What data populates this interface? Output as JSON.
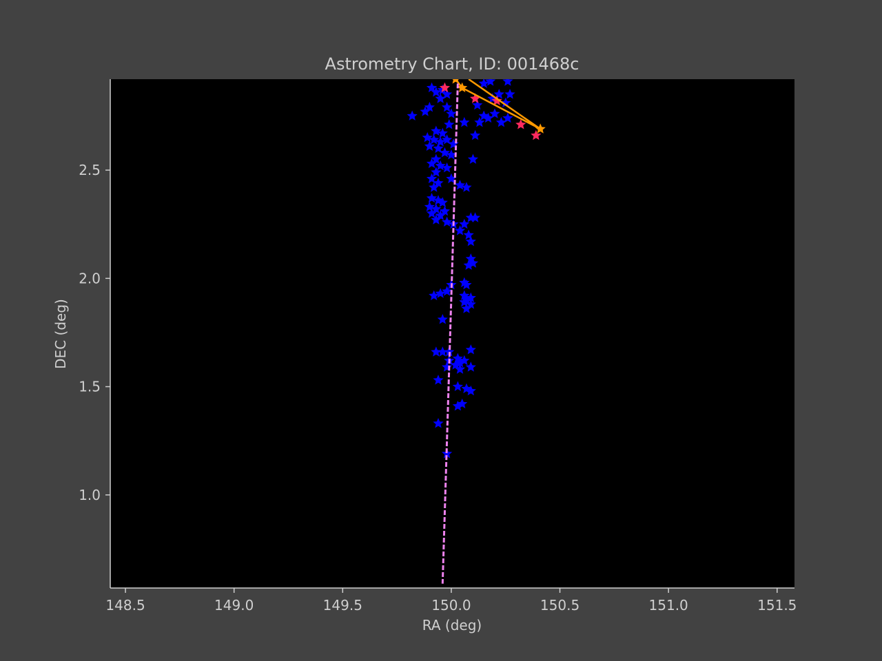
{
  "chart_data": {
    "type": "scatter",
    "title": "Astrometry Chart, ID: 001468c",
    "xlabel": "RA (deg)",
    "ylabel": "DEC (deg)",
    "xlim": [
      148.43,
      151.58
    ],
    "ylim": [
      0.57,
      2.92
    ],
    "x_ticks": [
      148.5,
      149.0,
      149.5,
      150.0,
      150.5,
      151.0,
      151.5
    ],
    "x_tick_labels": [
      "148.5",
      "149.0",
      "149.5",
      "150.0",
      "150.5",
      "151.0",
      "151.5"
    ],
    "y_ticks": [
      1.0,
      1.5,
      2.0,
      2.5
    ],
    "y_tick_labels": [
      "1.0",
      "1.5",
      "2.0",
      "2.5"
    ],
    "grid": false,
    "plot_background": "#000000",
    "figure_background": "#424242",
    "series": [
      {
        "marker": "star",
        "color": "#0000ff",
        "points": [
          [
            149.91,
            2.88
          ],
          [
            149.93,
            2.86
          ],
          [
            149.96,
            2.87
          ],
          [
            149.98,
            2.85
          ],
          [
            149.95,
            2.83
          ],
          [
            149.98,
            2.79
          ],
          [
            149.9,
            2.79
          ],
          [
            149.88,
            2.77
          ],
          [
            149.82,
            2.75
          ],
          [
            150.0,
            2.76
          ],
          [
            149.99,
            2.71
          ],
          [
            150.06,
            2.72
          ],
          [
            149.93,
            2.68
          ],
          [
            149.96,
            2.67
          ],
          [
            149.89,
            2.65
          ],
          [
            149.92,
            2.64
          ],
          [
            149.95,
            2.63
          ],
          [
            149.98,
            2.64
          ],
          [
            150.01,
            2.62
          ],
          [
            149.9,
            2.61
          ],
          [
            149.94,
            2.6
          ],
          [
            149.97,
            2.58
          ],
          [
            150.0,
            2.57
          ],
          [
            149.93,
            2.55
          ],
          [
            150.1,
            2.55
          ],
          [
            149.91,
            2.53
          ],
          [
            149.95,
            2.52
          ],
          [
            149.98,
            2.51
          ],
          [
            149.93,
            2.49
          ],
          [
            150.0,
            2.46
          ],
          [
            149.91,
            2.46
          ],
          [
            149.94,
            2.44
          ],
          [
            149.92,
            2.42
          ],
          [
            150.07,
            2.42
          ],
          [
            150.04,
            2.43
          ],
          [
            149.91,
            2.37
          ],
          [
            149.94,
            2.36
          ],
          [
            149.96,
            2.35
          ],
          [
            149.9,
            2.33
          ],
          [
            149.93,
            2.32
          ],
          [
            149.97,
            2.31
          ],
          [
            149.91,
            2.3
          ],
          [
            149.95,
            2.29
          ],
          [
            149.93,
            2.27
          ],
          [
            149.98,
            2.26
          ],
          [
            150.01,
            2.25
          ],
          [
            150.06,
            2.25
          ],
          [
            150.09,
            2.28
          ],
          [
            150.11,
            2.28
          ],
          [
            150.04,
            2.22
          ],
          [
            150.08,
            2.2
          ],
          [
            150.09,
            2.17
          ],
          [
            150.09,
            2.09
          ],
          [
            150.1,
            2.07
          ],
          [
            150.08,
            2.06
          ],
          [
            150.06,
            1.98
          ],
          [
            150.07,
            1.97
          ],
          [
            150.0,
            1.97
          ],
          [
            149.98,
            1.94
          ],
          [
            149.95,
            1.93
          ],
          [
            149.92,
            1.92
          ],
          [
            150.06,
            1.92
          ],
          [
            150.09,
            1.91
          ],
          [
            150.07,
            1.9
          ],
          [
            150.06,
            1.89
          ],
          [
            150.09,
            1.88
          ],
          [
            150.07,
            1.86
          ],
          [
            149.96,
            1.81
          ],
          [
            150.09,
            1.67
          ],
          [
            149.93,
            1.66
          ],
          [
            149.96,
            1.66
          ],
          [
            149.99,
            1.66
          ],
          [
            150.03,
            1.63
          ],
          [
            150.06,
            1.62
          ],
          [
            150.04,
            1.61
          ],
          [
            149.99,
            1.62
          ],
          [
            150.02,
            1.6
          ],
          [
            150.09,
            1.59
          ],
          [
            149.98,
            1.59
          ],
          [
            150.04,
            1.58
          ],
          [
            149.94,
            1.53
          ],
          [
            150.03,
            1.5
          ],
          [
            150.07,
            1.49
          ],
          [
            150.09,
            1.48
          ],
          [
            150.05,
            1.42
          ],
          [
            150.03,
            1.41
          ],
          [
            149.94,
            1.33
          ],
          [
            149.98,
            1.19
          ],
          [
            150.12,
            2.8
          ],
          [
            150.15,
            2.75
          ],
          [
            150.13,
            2.72
          ],
          [
            150.17,
            2.74
          ],
          [
            150.2,
            2.76
          ],
          [
            150.23,
            2.72
          ],
          [
            150.26,
            2.74
          ],
          [
            150.19,
            2.83
          ],
          [
            150.22,
            2.85
          ],
          [
            150.25,
            2.81
          ],
          [
            150.27,
            2.85
          ],
          [
            150.15,
            2.9
          ],
          [
            150.18,
            2.91
          ],
          [
            150.26,
            2.91
          ],
          [
            150.11,
            2.66
          ]
        ]
      },
      {
        "marker": "star",
        "color": "#ff2a5f",
        "points": [
          [
            149.97,
            2.88
          ],
          [
            150.11,
            2.83
          ],
          [
            150.21,
            2.82
          ],
          [
            150.32,
            2.71
          ],
          [
            150.39,
            2.66
          ]
        ]
      },
      {
        "type": "line",
        "marker": "star",
        "color": "#ff9900",
        "points": [
          [
            150.02,
            2.92
          ],
          [
            150.05,
            2.88
          ],
          [
            150.41,
            2.69
          ]
        ]
      },
      {
        "type": "line",
        "color": "#ff9900",
        "points": [
          [
            150.08,
            2.92
          ],
          [
            150.41,
            2.69
          ]
        ]
      },
      {
        "type": "line",
        "style": "dashed",
        "color": "#ee82ee",
        "points": [
          [
            150.03,
            2.9
          ],
          [
            149.96,
            0.59
          ]
        ]
      }
    ]
  }
}
